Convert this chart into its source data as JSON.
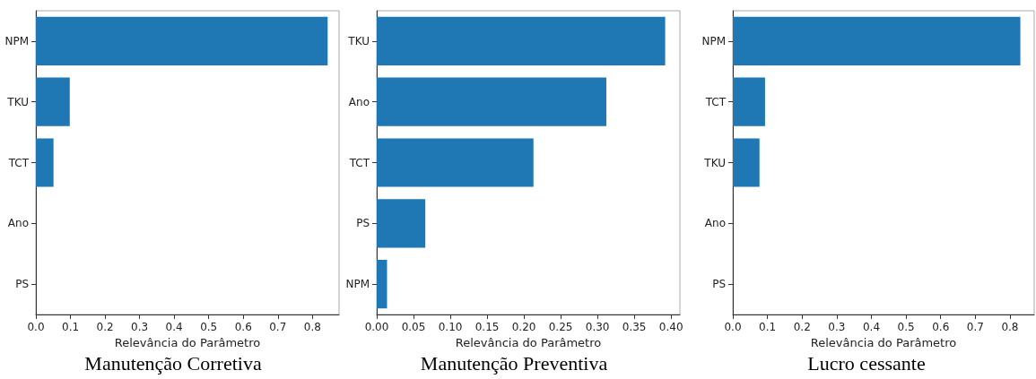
{
  "chart_data": [
    {
      "type": "bar",
      "orientation": "horizontal",
      "title": "Manutenção Corretiva",
      "xlabel": "Relevância do Parâmetro",
      "categories": [
        "NPM",
        "TKU",
        "TCT",
        "Ano",
        "PS"
      ],
      "values": [
        0.844,
        0.098,
        0.051,
        0,
        0
      ],
      "color": "#1f77b4",
      "xlim": [
        0,
        0.877
      ],
      "xticks": [
        {
          "value": 0,
          "label": "0.0"
        },
        0.1,
        0.2,
        0.3,
        0.4,
        0.5,
        0.6,
        0.7,
        0.8
      ],
      "grid": false
    },
    {
      "type": "bar",
      "orientation": "horizontal",
      "title": "Manutenção Preventiva",
      "xlabel": "Relevância do Parâmetro",
      "categories": [
        "TKU",
        "Ano",
        "TCT",
        "PS",
        "NPM"
      ],
      "values": [
        0.392,
        0.312,
        0.213,
        0.066,
        0.014
      ],
      "color": "#1f77b4",
      "xlim": [
        0,
        0.412
      ],
      "xticks": [
        {
          "value": 0,
          "label": "0.00"
        },
        {
          "value": 0.05,
          "label": "0.05"
        },
        {
          "value": 0.1,
          "label": "0.10"
        },
        {
          "value": 0.15,
          "label": "0.15"
        },
        {
          "value": 0.2,
          "label": "0.20"
        },
        {
          "value": 0.25,
          "label": "0.25"
        },
        {
          "value": 0.3,
          "label": "0.30"
        },
        {
          "value": 0.35,
          "label": "0.35"
        },
        {
          "value": 0.4,
          "label": "0.40"
        }
      ],
      "grid": false
    },
    {
      "type": "bar",
      "orientation": "horizontal",
      "title": "Lucro cessante",
      "xlabel": "Relevância do Parâmetro",
      "categories": [
        "NPM",
        "TCT",
        "TKU",
        "Ano",
        "PS"
      ],
      "values": [
        0.83,
        0.093,
        0.077,
        0,
        0
      ],
      "color": "#1f77b4",
      "xlim": [
        0,
        0.87
      ],
      "xticks": [
        {
          "value": 0,
          "label": "0.0"
        },
        0.1,
        0.2,
        0.3,
        0.4,
        0.5,
        0.6,
        0.7,
        0.8
      ],
      "grid": false
    }
  ]
}
